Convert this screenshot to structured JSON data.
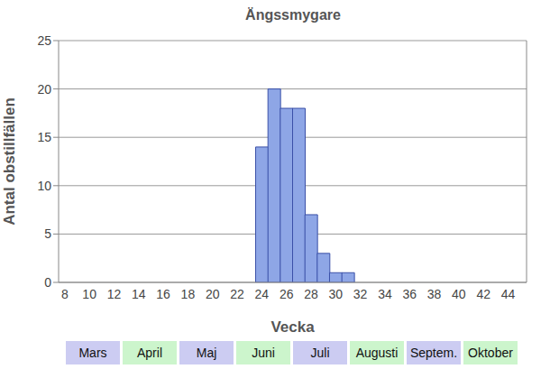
{
  "chart_data": {
    "type": "bar",
    "title": "Ängssmygare",
    "x_label": "Vecka",
    "y_label": "Antal obstillfällen",
    "categories": [
      8,
      null,
      10,
      null,
      12,
      null,
      14,
      null,
      16,
      null,
      18,
      null,
      20,
      null,
      22,
      null,
      24,
      null,
      26,
      null,
      28,
      null,
      30,
      null,
      32,
      null,
      34,
      null,
      36,
      null,
      38,
      null,
      40,
      null,
      42,
      null,
      44,
      null
    ],
    "values": [
      0,
      0,
      0,
      0,
      0,
      0,
      0,
      0,
      0,
      0,
      0,
      0,
      0,
      0,
      0,
      0,
      14,
      20,
      18,
      18,
      7,
      3,
      1,
      1,
      0,
      0,
      0,
      0,
      0,
      0,
      0,
      0,
      0,
      0,
      0,
      0,
      0,
      0
    ],
    "color": "#8ea6e6",
    "ylim": [
      0,
      25
    ],
    "yticks": [
      0,
      5,
      10,
      15,
      20,
      25
    ],
    "grid": true,
    "annotations": [
      "Mars",
      "April",
      "Maj",
      "Juni",
      "Juli",
      "Augusti",
      "Septem.",
      "Oktober"
    ]
  }
}
